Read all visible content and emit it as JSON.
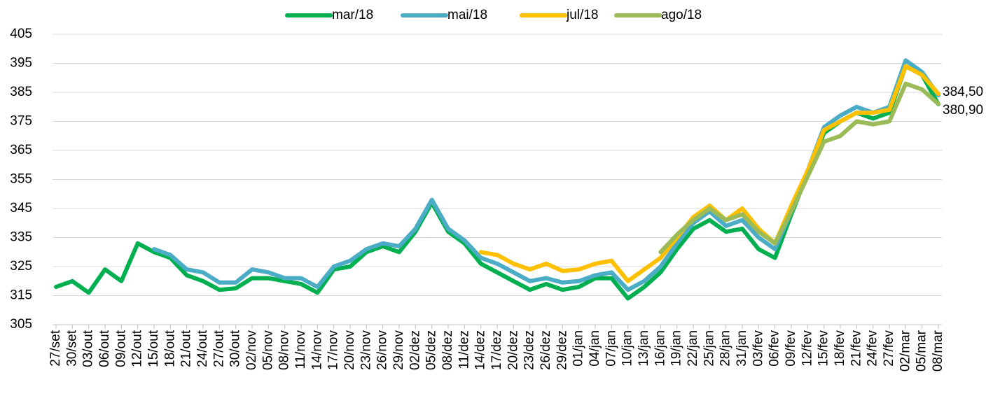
{
  "chart_data": {
    "type": "line",
    "categories": [
      "27/set",
      "30/set",
      "03/out",
      "06/out",
      "09/out",
      "12/out",
      "15/out",
      "18/out",
      "21/out",
      "24/out",
      "27/out",
      "30/out",
      "02/nov",
      "05/nov",
      "08/nov",
      "11/nov",
      "14/nov",
      "17/nov",
      "20/nov",
      "23/nov",
      "26/nov",
      "29/nov",
      "02/dez",
      "05/dez",
      "08/dez",
      "11/dez",
      "14/dez",
      "17/dez",
      "20/dez",
      "23/dez",
      "26/dez",
      "29/dez",
      "01/jan",
      "04/jan",
      "07/jan",
      "10/jan",
      "13/jan",
      "16/jan",
      "19/jan",
      "22/jan",
      "25/jan",
      "28/jan",
      "31/jan",
      "03/fev",
      "06/fev",
      "09/fev",
      "12/fev",
      "15/fev",
      "18/fev",
      "21/fev",
      "24/fev",
      "27/fev",
      "02/mar",
      "05/mar",
      "08/mar"
    ],
    "series": [
      {
        "name": "mar/18",
        "color": "#00b050",
        "values": [
          318,
          320,
          316,
          324,
          320,
          333,
          330,
          328,
          322,
          320,
          317,
          317.5,
          321,
          321,
          320,
          319,
          316,
          324,
          325,
          330,
          332,
          330,
          337,
          347,
          337,
          333,
          326,
          323,
          320,
          317,
          319,
          317,
          318,
          321,
          321,
          314,
          318,
          323,
          331,
          338,
          341,
          337,
          338,
          331,
          328,
          343,
          357,
          371,
          375,
          378,
          376,
          378,
          394,
          391,
          380.9
        ],
        "value_labels": [
          null,
          null,
          null,
          null,
          null,
          null,
          null,
          null,
          null,
          null,
          null,
          null,
          null,
          null,
          null,
          null,
          null,
          null,
          null,
          null,
          null,
          null,
          null,
          null,
          null,
          null,
          null,
          null,
          null,
          null,
          null,
          null,
          null,
          null,
          null,
          null,
          null,
          null,
          null,
          null,
          null,
          null,
          null,
          null,
          null,
          null,
          null,
          null,
          null,
          null,
          null,
          null,
          null,
          null,
          "380,90"
        ]
      },
      {
        "name": "mai/18",
        "color": "#4bacc6",
        "values": [
          null,
          null,
          null,
          null,
          null,
          null,
          331,
          329,
          324,
          323,
          319.5,
          319.5,
          324,
          323,
          321,
          321,
          318,
          325,
          327,
          331,
          333,
          332,
          338,
          348,
          338,
          334,
          328,
          326,
          323,
          320,
          321,
          319.5,
          320,
          322,
          323,
          317,
          320,
          325,
          333,
          340,
          344,
          339,
          341,
          335,
          331,
          344,
          358,
          373,
          377,
          380,
          378,
          380,
          396,
          392,
          384
        ]
      },
      {
        "name": "jul/18",
        "color": "#ffc000",
        "values": [
          null,
          null,
          null,
          null,
          null,
          null,
          null,
          null,
          null,
          null,
          null,
          null,
          null,
          null,
          null,
          null,
          null,
          null,
          null,
          null,
          null,
          null,
          null,
          null,
          null,
          null,
          330,
          329,
          326,
          324,
          326,
          323.5,
          324,
          326,
          327,
          320,
          324,
          328,
          335,
          342,
          346,
          341,
          345,
          338,
          333,
          346,
          358,
          372,
          375,
          378,
          378,
          379,
          394,
          391,
          384.5
        ],
        "value_labels": [
          null,
          null,
          null,
          null,
          null,
          null,
          null,
          null,
          null,
          null,
          null,
          null,
          null,
          null,
          null,
          null,
          null,
          null,
          null,
          null,
          null,
          null,
          null,
          null,
          null,
          null,
          null,
          null,
          null,
          null,
          null,
          null,
          null,
          null,
          null,
          null,
          null,
          null,
          null,
          null,
          null,
          null,
          null,
          null,
          null,
          null,
          null,
          null,
          null,
          null,
          null,
          null,
          null,
          null,
          "384,50"
        ]
      },
      {
        "name": "ago/18",
        "color": "#9bbb59",
        "values": [
          null,
          null,
          null,
          null,
          null,
          null,
          null,
          null,
          null,
          null,
          null,
          null,
          null,
          null,
          null,
          null,
          null,
          null,
          null,
          null,
          null,
          null,
          null,
          null,
          null,
          null,
          null,
          null,
          null,
          null,
          null,
          null,
          null,
          null,
          null,
          null,
          null,
          330,
          336,
          341,
          345,
          341,
          343,
          337,
          333,
          344,
          356,
          368,
          370,
          375,
          374,
          375,
          388,
          386,
          381
        ]
      }
    ],
    "ylim": [
      305,
      405
    ],
    "yticks": [
      305,
      315,
      325,
      335,
      345,
      355,
      365,
      375,
      385,
      395,
      405
    ],
    "grid": true
  }
}
